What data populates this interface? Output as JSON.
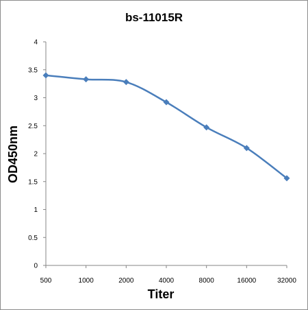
{
  "chart_data": {
    "type": "line",
    "title": "bs-11015R",
    "xlabel": "Titer",
    "ylabel": "OD450nm",
    "categories": [
      "500",
      "1000",
      "2000",
      "4000",
      "8000",
      "16000",
      "32000"
    ],
    "series": [
      {
        "values": [
          3.4,
          3.33,
          3.28,
          2.92,
          2.47,
          2.1,
          1.56
        ]
      }
    ],
    "ylim": [
      0,
      4
    ],
    "yticks": [
      "0",
      "0.5",
      "1",
      "1.5",
      "2",
      "2.5",
      "3",
      "3.5",
      "4"
    ],
    "grid": false,
    "legend": "none",
    "colors": {
      "series": "#4a7ebb",
      "axis": "#868686"
    }
  }
}
